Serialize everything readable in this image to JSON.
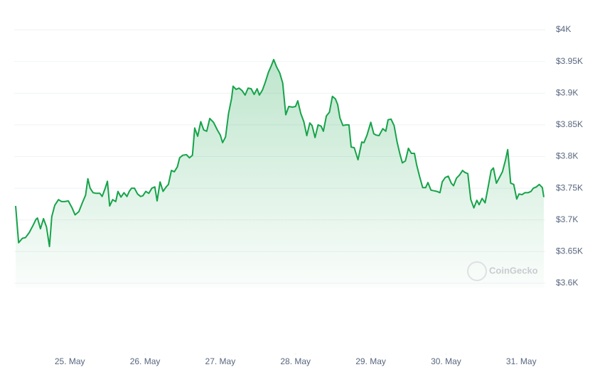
{
  "chart_data": {
    "type": "line",
    "color": "#16a34a",
    "watermark": "CoinGecko",
    "xlim": [
      24.28,
      31.3
    ],
    "xticks": [
      {
        "value": 25,
        "label": "25. May"
      },
      {
        "value": 26,
        "label": "26. May"
      },
      {
        "value": 27,
        "label": "27. May"
      },
      {
        "value": 28,
        "label": "28. May"
      },
      {
        "value": 29,
        "label": "29. May"
      },
      {
        "value": 30,
        "label": "30. May"
      },
      {
        "value": 31,
        "label": "31. May"
      }
    ],
    "ylim": [
      3600,
      4000
    ],
    "yticks": [
      {
        "value": 3600,
        "label": "$3.6K"
      },
      {
        "value": 3650,
        "label": "$3.65K"
      },
      {
        "value": 3700,
        "label": "$3.7K"
      },
      {
        "value": 3750,
        "label": "$3.75K"
      },
      {
        "value": 3800,
        "label": "$3.8K"
      },
      {
        "value": 3850,
        "label": "$3.85K"
      },
      {
        "value": 3900,
        "label": "$3.9K"
      },
      {
        "value": 3950,
        "label": "$3.95K"
      },
      {
        "value": 4000,
        "label": "$4K"
      }
    ],
    "grid": true,
    "x": [
      24.28,
      24.32,
      24.37,
      24.41,
      24.46,
      24.51,
      24.55,
      24.57,
      24.61,
      24.65,
      24.69,
      24.73,
      24.76,
      24.8,
      24.85,
      24.89,
      24.93,
      24.98,
      25.03,
      25.07,
      25.12,
      25.17,
      25.21,
      25.24,
      25.27,
      25.31,
      25.35,
      25.4,
      25.43,
      25.47,
      25.5,
      25.53,
      25.57,
      25.61,
      25.64,
      25.68,
      25.72,
      25.76,
      25.79,
      25.82,
      25.86,
      25.9,
      25.94,
      25.97,
      26.01,
      26.05,
      26.09,
      26.13,
      26.16,
      26.2,
      26.24,
      26.28,
      26.31,
      26.35,
      26.39,
      26.43,
      26.46,
      26.5,
      26.55,
      26.59,
      26.63,
      26.66,
      26.7,
      26.74,
      26.78,
      26.82,
      26.86,
      26.91,
      26.96,
      27.0,
      27.03,
      27.07,
      27.11,
      27.15,
      27.17,
      27.21,
      27.25,
      27.29,
      27.33,
      27.37,
      27.41,
      27.45,
      27.49,
      27.52,
      27.56,
      27.6,
      27.64,
      27.68,
      27.71,
      27.75,
      27.79,
      27.83,
      27.87,
      27.91,
      27.96,
      28.0,
      28.03,
      28.07,
      28.11,
      28.15,
      28.19,
      28.22,
      28.26,
      28.3,
      28.34,
      28.37,
      28.41,
      28.45,
      28.49,
      28.53,
      28.56,
      28.59,
      28.63,
      28.67,
      28.71,
      28.74,
      28.78,
      28.83,
      28.88,
      28.91,
      28.95,
      29.0,
      29.04,
      29.07,
      29.11,
      29.16,
      29.2,
      29.23,
      29.27,
      29.31,
      29.35,
      29.39,
      29.42,
      29.46,
      29.5,
      29.54,
      29.58,
      29.61,
      29.65,
      29.69,
      29.73,
      29.76,
      29.8,
      29.84,
      29.88,
      29.92,
      29.95,
      29.99,
      30.03,
      30.07,
      30.1,
      30.14,
      30.18,
      30.22,
      30.25,
      30.29,
      30.33,
      30.37,
      30.41,
      30.44,
      30.48,
      30.52,
      30.56,
      30.6,
      30.63,
      30.67,
      30.71,
      30.75,
      30.79,
      30.82,
      30.86,
      30.9,
      30.94,
      30.97,
      31.01,
      31.05,
      31.09,
      31.13,
      31.16,
      31.2,
      31.24,
      31.28,
      31.3
    ],
    "values": [
      3722,
      3664,
      3671,
      3672,
      3680,
      3691,
      3701,
      3703,
      3686,
      3702,
      3689,
      3658,
      3705,
      3723,
      3732,
      3729,
      3729,
      3730,
      3719,
      3708,
      3713,
      3728,
      3739,
      3765,
      3750,
      3743,
      3742,
      3742,
      3737,
      3750,
      3761,
      3722,
      3732,
      3729,
      3745,
      3736,
      3743,
      3737,
      3745,
      3750,
      3750,
      3741,
      3737,
      3738,
      3745,
      3742,
      3750,
      3752,
      3730,
      3760,
      3745,
      3752,
      3756,
      3778,
      3776,
      3784,
      3798,
      3802,
      3803,
      3798,
      3802,
      3845,
      3832,
      3855,
      3842,
      3840,
      3860,
      3854,
      3842,
      3834,
      3822,
      3831,
      3868,
      3892,
      3911,
      3906,
      3908,
      3904,
      3897,
      3908,
      3907,
      3898,
      3907,
      3897,
      3905,
      3918,
      3933,
      3944,
      3953,
      3941,
      3932,
      3916,
      3866,
      3879,
      3878,
      3879,
      3888,
      3868,
      3855,
      3833,
      3853,
      3849,
      3830,
      3850,
      3848,
      3840,
      3864,
      3870,
      3895,
      3891,
      3882,
      3861,
      3849,
      3850,
      3850,
      3815,
      3814,
      3795,
      3823,
      3822,
      3834,
      3854,
      3836,
      3834,
      3833,
      3844,
      3840,
      3858,
      3859,
      3849,
      3823,
      3803,
      3790,
      3793,
      3813,
      3805,
      3805,
      3787,
      3768,
      3751,
      3751,
      3759,
      3747,
      3746,
      3745,
      3743,
      3760,
      3767,
      3769,
      3758,
      3754,
      3766,
      3771,
      3778,
      3775,
      3773,
      3732,
      3719,
      3731,
      3724,
      3734,
      3727,
      3752,
      3778,
      3782,
      3758,
      3767,
      3776,
      3794,
      3811,
      3758,
      3756,
      3733,
      3741,
      3740,
      3743,
      3743,
      3745,
      3750,
      3752,
      3756,
      3751,
      3736
    ]
  }
}
